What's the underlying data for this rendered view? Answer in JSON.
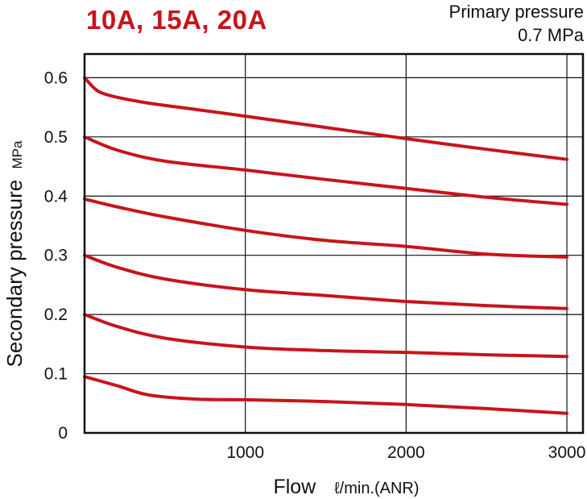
{
  "header": {
    "title": "10A, 15A, 20A",
    "condition_line1": "Primary pressure",
    "condition_line2": "0.7 MPa"
  },
  "chart_data": {
    "type": "line",
    "title": "10A, 15A, 20A",
    "xlabel": "Flow",
    "xlabel_unit": "ℓ/min.(ANR)",
    "ylabel": "Secondary pressure",
    "ylabel_unit": "MPa",
    "xlim": [
      0,
      3100
    ],
    "ylim": [
      0,
      0.64
    ],
    "x_ticks": [
      1000,
      2000,
      3000
    ],
    "x_tick_labels": [
      "1000",
      "2000",
      "3000"
    ],
    "y_ticks": [
      0,
      0.1,
      0.2,
      0.3,
      0.4,
      0.5,
      0.6
    ],
    "y_tick_labels": [
      "0",
      "0.1",
      "0.2",
      "0.3",
      "0.4",
      "0.5",
      "0.6"
    ],
    "grid": true,
    "line_color": "#c8141c",
    "series": [
      {
        "x": [
          0,
          50,
          100,
          200,
          400,
          700,
          1000,
          1500,
          2000,
          2500,
          3000
        ],
        "y": [
          0.6,
          0.585,
          0.575,
          0.567,
          0.557,
          0.546,
          0.535,
          0.516,
          0.497,
          0.479,
          0.462
        ]
      },
      {
        "x": [
          0,
          200,
          500,
          1000,
          1500,
          2000,
          2500,
          3000
        ],
        "y": [
          0.5,
          0.478,
          0.459,
          0.444,
          0.428,
          0.413,
          0.398,
          0.386
        ]
      },
      {
        "x": [
          0,
          200,
          500,
          1000,
          1500,
          2000,
          2500,
          3000
        ],
        "y": [
          0.395,
          0.382,
          0.365,
          0.342,
          0.325,
          0.315,
          0.302,
          0.297
        ]
      },
      {
        "x": [
          0,
          200,
          500,
          1000,
          1500,
          2000,
          2500,
          3000
        ],
        "y": [
          0.3,
          0.28,
          0.26,
          0.242,
          0.232,
          0.222,
          0.215,
          0.21
        ]
      },
      {
        "x": [
          0,
          200,
          500,
          1000,
          1500,
          2000,
          2500,
          3000
        ],
        "y": [
          0.2,
          0.18,
          0.16,
          0.145,
          0.139,
          0.136,
          0.132,
          0.129
        ]
      },
      {
        "x": [
          0,
          200,
          400,
          700,
          1000,
          1500,
          2000,
          2500,
          3000
        ],
        "y": [
          0.095,
          0.08,
          0.064,
          0.057,
          0.056,
          0.053,
          0.048,
          0.041,
          0.033
        ]
      }
    ]
  }
}
